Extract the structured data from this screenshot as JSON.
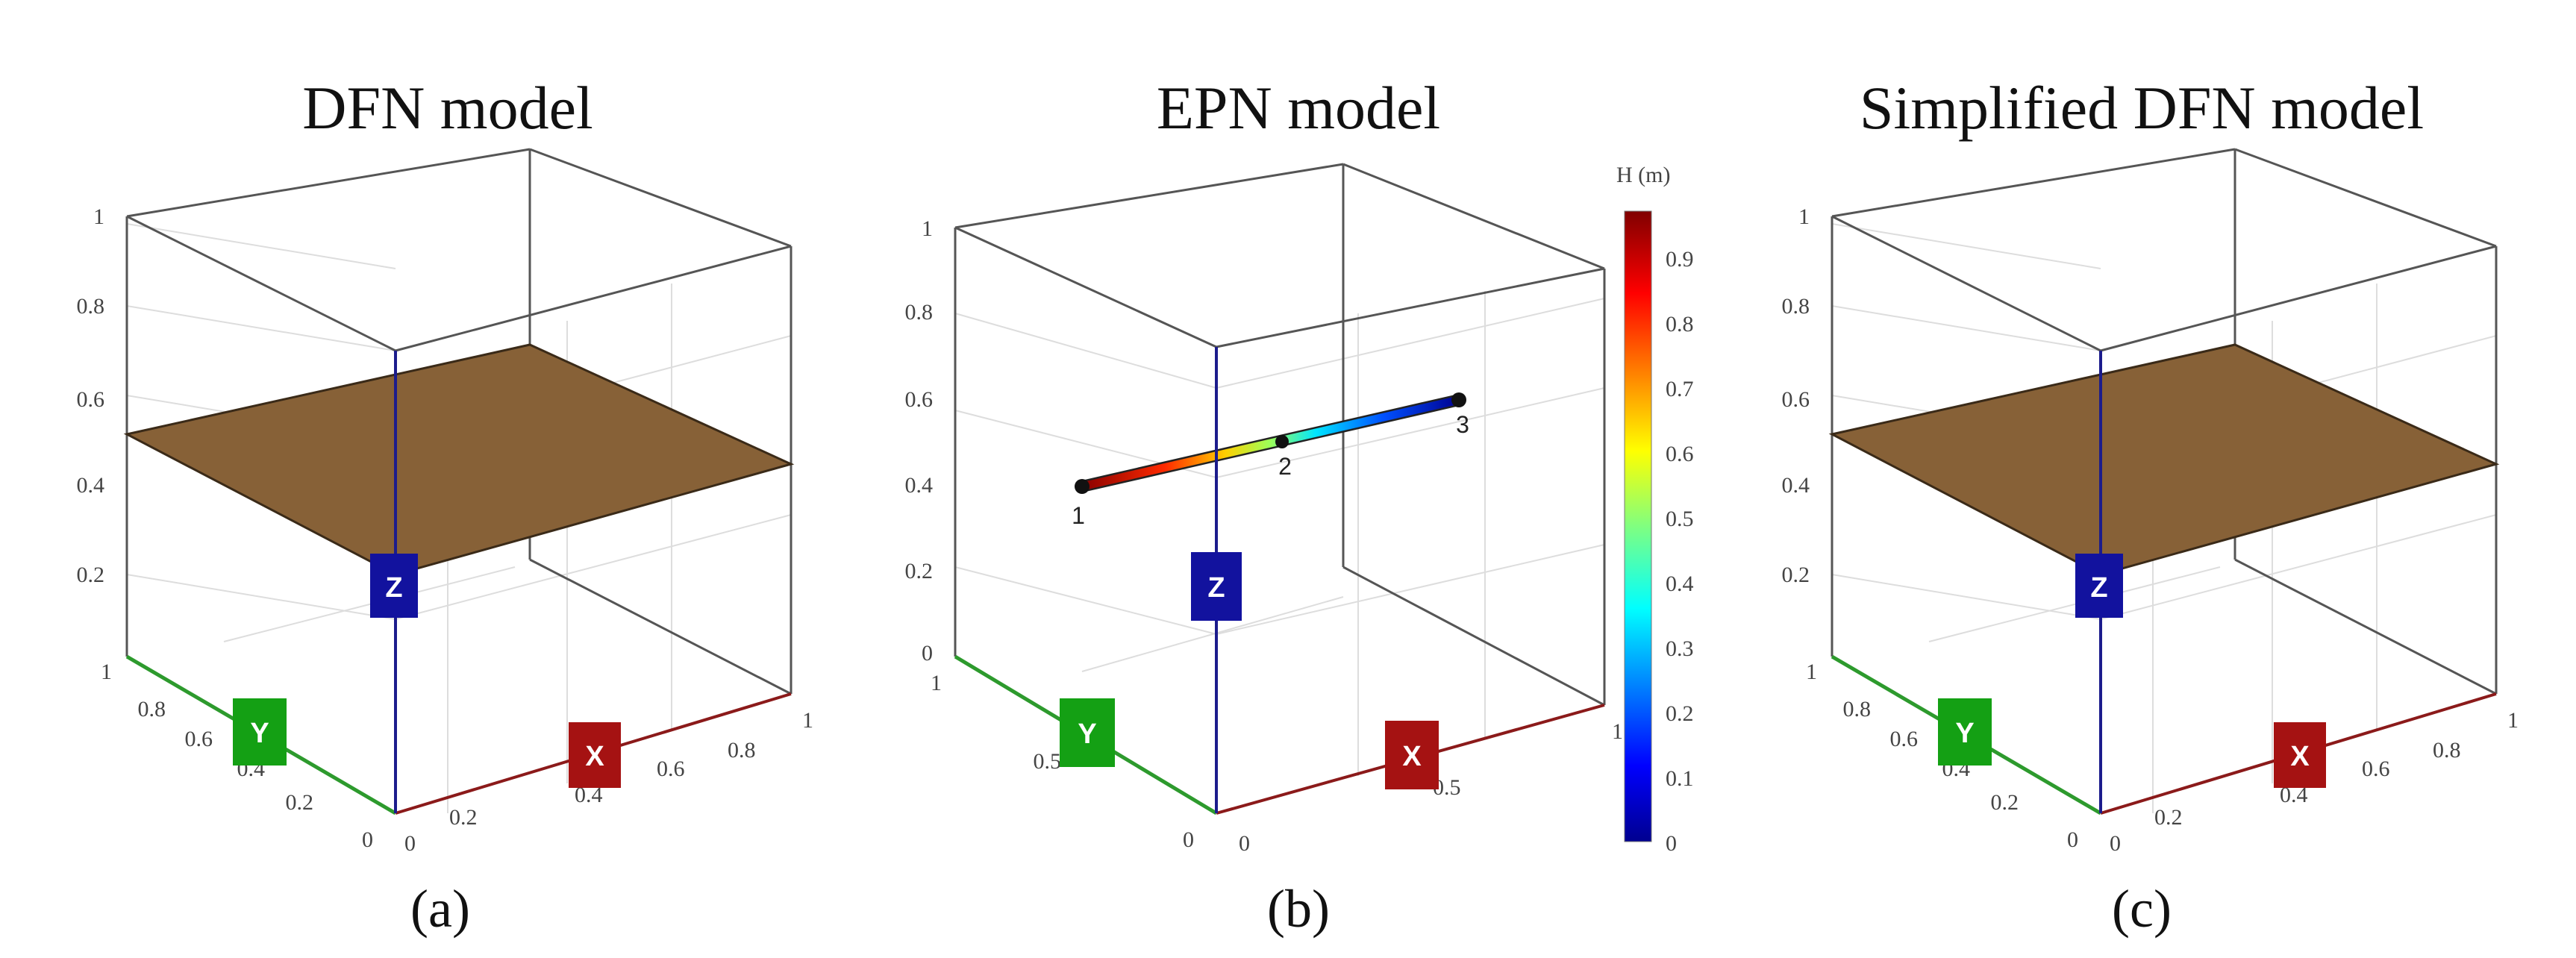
{
  "colors": {
    "fracture_plane": "#876137",
    "x_axis": "#8b1a1a",
    "y_axis": "#2d9a2d",
    "z_axis": "#1c1c8c",
    "badge_x": "#a51212",
    "badge_y": "#14a014",
    "badge_z": "#12129e"
  },
  "panels": [
    {
      "id": "a",
      "title": "DFN model",
      "caption": "(a)",
      "z_ticks": [
        "1",
        "0.8",
        "0.6",
        "0.4",
        "0.2"
      ],
      "y_ticks": [
        "1",
        "0.8",
        "0.6",
        "0.4",
        "0.2",
        "0"
      ],
      "x_ticks": [
        "0",
        "0.2",
        "0.4",
        "0.6",
        "0.8",
        "1"
      ],
      "badges": {
        "z": "Z",
        "y": "Y",
        "x": "X"
      }
    },
    {
      "id": "b",
      "title": "EPN model",
      "caption": "(b)",
      "z_ticks": [
        "1",
        "0.8",
        "0.6",
        "0.4",
        "0.2",
        "0"
      ],
      "y_ticks": [
        "1",
        "0.5",
        "0"
      ],
      "x_ticks": [
        "0",
        "0.5",
        "1"
      ],
      "badges": {
        "z": "Z",
        "y": "Y",
        "x": "X"
      },
      "nodes": [
        {
          "label": "1",
          "head": 0.97
        },
        {
          "label": "2",
          "head": 0.5
        },
        {
          "label": "3",
          "head": 0.02
        }
      ],
      "colorbar": {
        "title": "H (m)",
        "min": 0,
        "max": 0.97,
        "ticks": [
          "0.9",
          "0.8",
          "0.7",
          "0.6",
          "0.5",
          "0.4",
          "0.3",
          "0.2",
          "0.1",
          "0"
        ],
        "colormap": "jet"
      }
    },
    {
      "id": "c",
      "title": "Simplified DFN model",
      "caption": "(c)",
      "z_ticks": [
        "1",
        "0.8",
        "0.6",
        "0.4",
        "0.2"
      ],
      "y_ticks": [
        "1",
        "0.8",
        "0.6",
        "0.4",
        "0.2",
        "0"
      ],
      "x_ticks": [
        "0",
        "0.2",
        "0.4",
        "0.6",
        "0.8",
        "1"
      ],
      "badges": {
        "z": "Z",
        "y": "Y",
        "x": "X"
      }
    }
  ]
}
